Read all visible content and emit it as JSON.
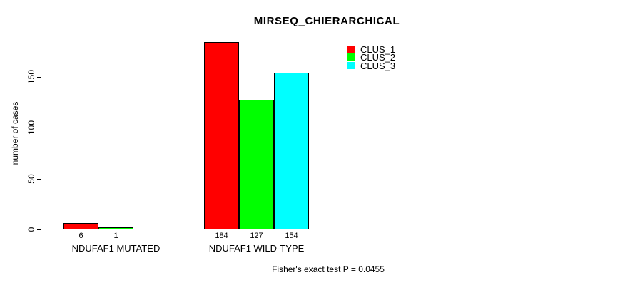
{
  "chart_data": {
    "type": "bar",
    "title": "MIRSEQ_CHIERARCHICAL",
    "ylabel": "number of cases",
    "xlabel": "",
    "categories": [
      "NDUFAF1 MUTATED",
      "NDUFAF1 WILD-TYPE"
    ],
    "series": [
      {
        "name": "CLUS_1",
        "color": "#FF0000",
        "values": [
          6,
          184
        ]
      },
      {
        "name": "CLUS_2",
        "color": "#00FF00",
        "values": [
          1,
          127
        ]
      },
      {
        "name": "CLUS_3",
        "color": "#00FFFF",
        "values": [
          0,
          154
        ]
      }
    ],
    "bar_value_labels": [
      [
        "6",
        "1",
        ""
      ],
      [
        "184",
        "127",
        "154"
      ]
    ],
    "yticks": [
      0,
      50,
      100,
      150
    ],
    "axis_range": [
      0,
      150
    ],
    "grid": false,
    "legend": {
      "position": "top-right",
      "entries": [
        {
          "label": "CLUS_1",
          "color": "#FF0000"
        },
        {
          "label": "CLUS_2",
          "color": "#00FF00"
        },
        {
          "label": "CLUS_3",
          "color": "#00FFFF"
        }
      ]
    },
    "annotation": "Fisher's exact test P = 0.0455",
    "colors": {
      "background": "#FFFFFF",
      "axis": "#000000",
      "text": "#000000"
    }
  }
}
